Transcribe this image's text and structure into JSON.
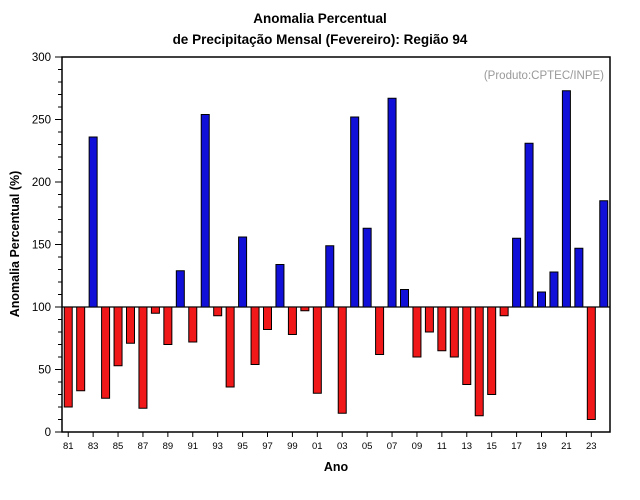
{
  "header": {
    "title_line1": "Anomalia Percentual",
    "title_line2": "de Precipitação Mensal (Fevereiro): Região 94"
  },
  "annotation": {
    "text": "(Produto:CPTEC/INPE)",
    "color": "#999999"
  },
  "chart_data": {
    "type": "bar",
    "title": "Anomalia Percentual de Precipitação Mensal (Fevereiro): Região 94",
    "xlabel": "Ano",
    "ylabel": "Anomalia Percentual (%)",
    "ylim": [
      0,
      300
    ],
    "y_major_ticks": [
      0,
      50,
      100,
      150,
      200,
      250,
      300
    ],
    "y_minor_step": 10,
    "baseline": 100,
    "grid": false,
    "legend_position": "none",
    "years": [
      1981,
      1982,
      1983,
      1984,
      1985,
      1986,
      1987,
      1988,
      1989,
      1990,
      1991,
      1992,
      1993,
      1994,
      1995,
      1996,
      1997,
      1998,
      1999,
      2000,
      2001,
      2002,
      2003,
      2004,
      2005,
      2006,
      2007,
      2008,
      2009,
      2010,
      2011,
      2012,
      2013,
      2014,
      2015,
      2016,
      2017,
      2018,
      2019,
      2020,
      2021,
      2022,
      2023,
      2024
    ],
    "x_tick_labels": [
      "81",
      "83",
      "85",
      "87",
      "89",
      "91",
      "93",
      "95",
      "97",
      "99",
      "01",
      "03",
      "05",
      "07",
      "09",
      "11",
      "13",
      "15",
      "17",
      "19",
      "21",
      "23"
    ],
    "values": [
      20,
      33,
      236,
      27,
      53,
      71,
      19,
      95,
      70,
      129,
      72,
      254,
      93,
      36,
      156,
      54,
      82,
      134,
      78,
      97,
      31,
      149,
      15,
      252,
      163,
      62,
      267,
      114,
      60,
      80,
      65,
      60,
      38,
      13,
      30,
      93,
      155,
      231,
      112,
      128,
      273,
      147,
      10,
      185
    ],
    "colors": {
      "above_baseline": "#1010d8",
      "below_baseline": "#f01818",
      "axis": "#000000",
      "background": "#ffffff"
    }
  }
}
